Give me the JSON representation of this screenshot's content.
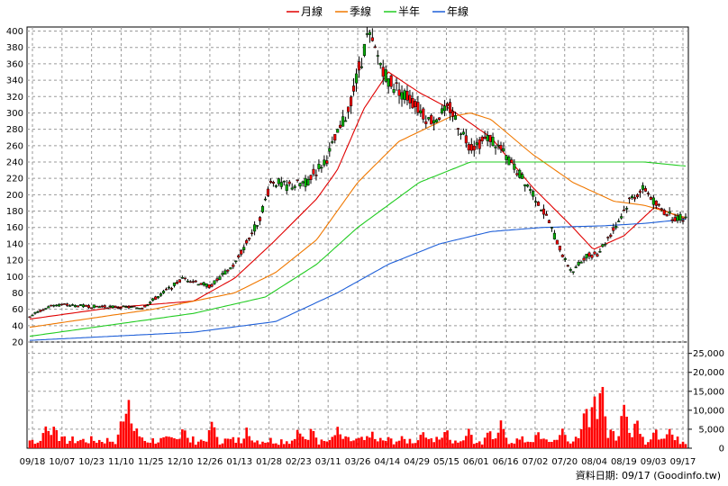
{
  "chart_data": [
    {
      "type": "candlestick",
      "legend": [
        {
          "name": "月線",
          "color": "#e00000"
        },
        {
          "name": "季線",
          "color": "#f07800"
        },
        {
          "name": "半年",
          "color": "#22cc22"
        },
        {
          "name": "年線",
          "color": "#1e5fd8"
        }
      ],
      "ylim": [
        20,
        405
      ],
      "yticks": [
        "400",
        "380",
        "360",
        "340",
        "320",
        "300",
        "280",
        "260",
        "240",
        "220",
        "200",
        "180",
        "160",
        "140",
        "120",
        "100",
        "80",
        "60",
        "40",
        "20"
      ],
      "x_labels": [
        "09/18",
        "10/07",
        "10/23",
        "11/10",
        "11/25",
        "12/10",
        "12/26",
        "01/13",
        "01/28",
        "02/23",
        "03/11",
        "03/26",
        "04/14",
        "04/29",
        "05/15",
        "06/01",
        "06/16",
        "07/02",
        "07/20",
        "08/04",
        "08/19",
        "09/03",
        "09/17"
      ],
      "n_bars": 246,
      "price_keypoints": [
        [
          0,
          52
        ],
        [
          12,
          66
        ],
        [
          25,
          64
        ],
        [
          40,
          63
        ],
        [
          55,
          62
        ],
        [
          65,
          80
        ],
        [
          75,
          98
        ],
        [
          88,
          88
        ],
        [
          100,
          115
        ],
        [
          112,
          170
        ],
        [
          118,
          218
        ],
        [
          125,
          210
        ],
        [
          135,
          215
        ],
        [
          145,
          245
        ],
        [
          155,
          300
        ],
        [
          165,
          395
        ],
        [
          175,
          340
        ],
        [
          185,
          318
        ],
        [
          195,
          290
        ],
        [
          205,
          305
        ],
        [
          215,
          258
        ],
        [
          225,
          270
        ],
        [
          235,
          238
        ],
        [
          245,
          205
        ],
        [
          253,
          168
        ],
        [
          261,
          120
        ],
        [
          265,
          106
        ],
        [
          271,
          125
        ],
        [
          277,
          128
        ],
        [
          285,
          158
        ],
        [
          293,
          195
        ],
        [
          300,
          208
        ],
        [
          306,
          186
        ],
        [
          314,
          172
        ],
        [
          320,
          172
        ]
      ],
      "ma_keypoints": {
        "月線": [
          [
            0,
            48
          ],
          [
            40,
            62
          ],
          [
            80,
            70
          ],
          [
            100,
            98
          ],
          [
            118,
            140
          ],
          [
            140,
            195
          ],
          [
            150,
            230
          ],
          [
            163,
            305
          ],
          [
            175,
            350
          ],
          [
            190,
            325
          ],
          [
            205,
            305
          ],
          [
            225,
            270
          ],
          [
            245,
            210
          ],
          [
            265,
            160
          ],
          [
            275,
            133
          ],
          [
            290,
            150
          ],
          [
            305,
            185
          ],
          [
            320,
            170
          ]
        ],
        "季線": [
          [
            0,
            38
          ],
          [
            60,
            60
          ],
          [
            100,
            80
          ],
          [
            120,
            105
          ],
          [
            140,
            145
          ],
          [
            160,
            215
          ],
          [
            180,
            265
          ],
          [
            205,
            295
          ],
          [
            215,
            300
          ],
          [
            225,
            292
          ],
          [
            245,
            250
          ],
          [
            265,
            215
          ],
          [
            285,
            192
          ],
          [
            300,
            187
          ],
          [
            320,
            172
          ]
        ],
        "半年": [
          [
            0,
            27
          ],
          [
            80,
            55
          ],
          [
            115,
            75
          ],
          [
            140,
            115
          ],
          [
            160,
            160
          ],
          [
            190,
            215
          ],
          [
            215,
            240
          ],
          [
            245,
            240
          ],
          [
            270,
            240
          ],
          [
            300,
            240
          ],
          [
            320,
            235
          ]
        ],
        "年線": [
          [
            0,
            22
          ],
          [
            80,
            32
          ],
          [
            120,
            45
          ],
          [
            150,
            80
          ],
          [
            175,
            115
          ],
          [
            200,
            140
          ],
          [
            225,
            155
          ],
          [
            250,
            160
          ],
          [
            280,
            162
          ],
          [
            300,
            165
          ],
          [
            320,
            170
          ]
        ]
      },
      "volume_ylim": [
        0,
        28000
      ],
      "volume_yticks": [
        "25,000",
        "20,000",
        "15,000",
        "10,000",
        "5,000",
        "0"
      ],
      "volume_spikes": [
        [
          8,
          6500
        ],
        [
          12,
          7200
        ],
        [
          45,
          9000
        ],
        [
          48,
          15000
        ],
        [
          52,
          6000
        ],
        [
          75,
          6500
        ],
        [
          89,
          7800
        ],
        [
          106,
          5500
        ],
        [
          131,
          5800
        ],
        [
          138,
          6300
        ],
        [
          150,
          6000
        ],
        [
          167,
          4200
        ],
        [
          192,
          5200
        ],
        [
          203,
          5600
        ],
        [
          214,
          5800
        ],
        [
          224,
          6200
        ],
        [
          230,
          7000
        ],
        [
          248,
          5000
        ],
        [
          260,
          5500
        ],
        [
          271,
          12000
        ],
        [
          275,
          15000
        ],
        [
          279,
          20000
        ],
        [
          284,
          6000
        ],
        [
          290,
          14000
        ],
        [
          296,
          8000
        ],
        [
          305,
          5500
        ],
        [
          312,
          6500
        ]
      ],
      "footer": "資料日期: 09/17  (Goodinfo.tw)"
    }
  ]
}
